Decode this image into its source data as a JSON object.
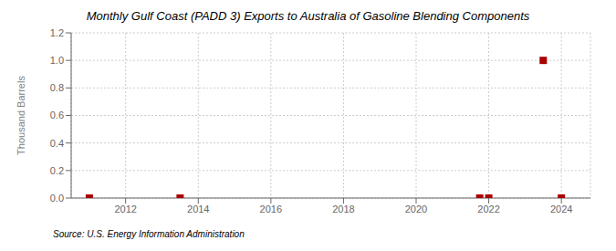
{
  "chart_data": {
    "type": "scatter",
    "title": "Monthly Gulf Coast (PADD 3) Exports to Australia of Gasoline Blending Components",
    "y_label": "Thousand Barrels",
    "annotations": [
      "Source: U.S. Energy Information Administration"
    ],
    "x": [
      2011.0,
      2013.5,
      2021.75,
      2022.0,
      2023.5,
      2024.0
    ],
    "values": [
      0.0,
      0.0,
      0.0,
      0.0,
      1.0,
      0.0
    ],
    "color": "#aa0000",
    "marker": "square",
    "xlim": [
      2010.5,
      2024.8
    ],
    "xticks": [
      2012,
      2014,
      2016,
      2018,
      2020,
      2022,
      2024
    ],
    "ylim": [
      0.0,
      1.2
    ],
    "yticks": [
      {
        "value": 0.0,
        "label": "0.0"
      },
      0.2,
      0.4,
      0.6,
      0.8,
      {
        "value": 1.0,
        "label": "1.0"
      },
      1.2
    ],
    "grid": true
  }
}
